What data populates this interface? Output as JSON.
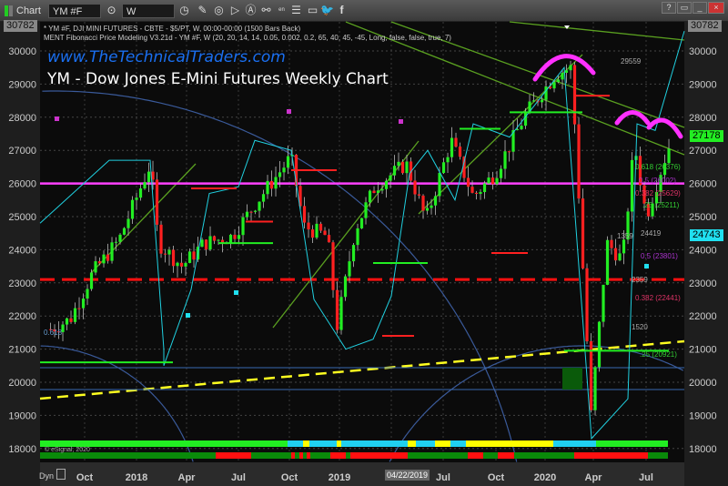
{
  "toolbar": {
    "window_label": "Chart",
    "symbol": "YM #F",
    "interval": "W",
    "help": "?",
    "min": "_",
    "max": "□",
    "close": "×"
  },
  "header": {
    "line1": "* YM #F, DJI MINI FUTURES - CBTE - $5/PT, W, 00:00-00:00 (1500 Bars Back)",
    "line2": "MENT Fibonacci Price Modeling V3.21d - YM #F, W (20, 20, 14, 14, 0.05, 0.002, 0.2, 65, 40, 45, -45, Long, false, false, true, 7)"
  },
  "watermark": {
    "site": "www.TheTechnicalTraders.com",
    "title": "YM - Dow Jones E-Mini Futures Weekly Chart"
  },
  "copyright": "© eSignal, 2020",
  "dyn_label": "Dyn",
  "cursor_date": "04/22/2019",
  "badges": {
    "top_left": "30782",
    "top_right": "30782",
    "last": "27178",
    "cyan": "24743"
  },
  "annotations": {
    "a1": "29559",
    "a2": "0.618 (26376)",
    "a3": "0.5 (26002)",
    "a4": "0.382 (25629)",
    "a5": ".25 (25211)",
    "a6": "0.5 (23801)",
    "a7": "2359",
    "a8": "0.382 (22441)",
    "a9": "1520",
    "a10": ".25 (20921)",
    "a11": "1359",
    "a12": "24419",
    "a13": "0.618"
  },
  "colors": {
    "up": "#22ee22",
    "down": "#ff2020",
    "magenta_line": "#ff40ff",
    "red_dashed": "#ff1010",
    "yellow_trend": "#ffff20",
    "cyan_band": "#20d0e0",
    "website": "#1a6ff0"
  },
  "chart_data": {
    "type": "candlestick",
    "title": "YM - Dow Jones E-Mini Futures Weekly Chart",
    "ylim": [
      18000,
      30782
    ],
    "yticks": [
      18000,
      19000,
      20000,
      21000,
      22000,
      23000,
      24000,
      25000,
      26000,
      27000,
      28000,
      29000,
      30000
    ],
    "xticks": [
      "Oct",
      "2018",
      "Apr",
      "Jul",
      "Oct",
      "2019",
      "Apr",
      "Jul",
      "Oct",
      "2020",
      "Apr",
      "Jul"
    ],
    "last_price": 27178,
    "horizontal_levels": [
      {
        "value": 26000,
        "style": "solid magenta"
      },
      {
        "value": 23100,
        "style": "dashed red"
      }
    ],
    "closes": [
      {
        "date": "2017-08-01",
        "close": 21600
      },
      {
        "date": "2017-09-05",
        "close": 21900
      },
      {
        "date": "2017-10-15",
        "close": 23300
      },
      {
        "date": "2017-12-01",
        "close": 24300
      },
      {
        "date": "2018-01-26",
        "close": 26600
      },
      {
        "date": "2018-02-09",
        "close": 24200
      },
      {
        "date": "2018-03-23",
        "close": 23500
      },
      {
        "date": "2018-05-01",
        "close": 24200
      },
      {
        "date": "2018-06-20",
        "close": 24400
      },
      {
        "date": "2018-08-01",
        "close": 25400
      },
      {
        "date": "2018-10-03",
        "close": 26800
      },
      {
        "date": "2018-10-26",
        "close": 24700
      },
      {
        "date": "2018-12-07",
        "close": 24400
      },
      {
        "date": "2018-12-24",
        "close": 21700
      },
      {
        "date": "2019-01-25",
        "close": 24600
      },
      {
        "date": "2019-03-01",
        "close": 25900
      },
      {
        "date": "2019-04-26",
        "close": 26600
      },
      {
        "date": "2019-05-31",
        "close": 24900
      },
      {
        "date": "2019-07-15",
        "close": 27300
      },
      {
        "date": "2019-08-23",
        "close": 25600
      },
      {
        "date": "2019-10-01",
        "close": 26300
      },
      {
        "date": "2019-11-25",
        "close": 28100
      },
      {
        "date": "2020-01-17",
        "close": 29300
      },
      {
        "date": "2020-02-14",
        "close": 29500
      },
      {
        "date": "2020-02-28",
        "close": 25400
      },
      {
        "date": "2020-03-20",
        "close": 19000
      },
      {
        "date": "2020-04-17",
        "close": 24200
      },
      {
        "date": "2020-05-15",
        "close": 23700
      },
      {
        "date": "2020-06-05",
        "close": 27200
      },
      {
        "date": "2020-06-26",
        "close": 25000
      },
      {
        "date": "2020-07-24",
        "close": 26500
      },
      {
        "date": "2020-08-07",
        "close": 27178
      }
    ]
  }
}
